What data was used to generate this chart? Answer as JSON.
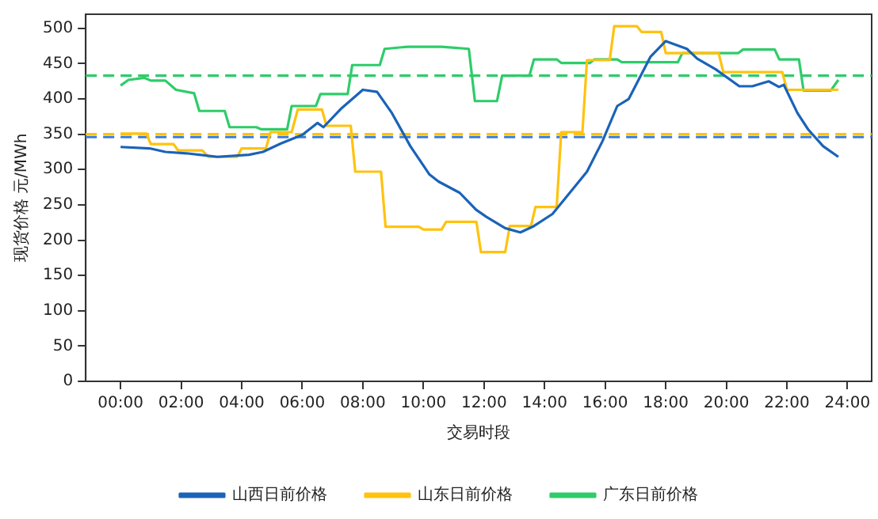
{
  "chart_data": {
    "type": "line",
    "xlabel": "交易时段",
    "ylabel": "现货价格 元/MWh",
    "xlim": [
      -1.15,
      24.8
    ],
    "xticks": [
      {
        "value": 0,
        "label": "00:00"
      },
      {
        "value": 2,
        "label": "02:00"
      },
      {
        "value": 4,
        "label": "04:00"
      },
      {
        "value": 6,
        "label": "06:00"
      },
      {
        "value": 8,
        "label": "08:00"
      },
      {
        "value": 10,
        "label": "10:00"
      },
      {
        "value": 12,
        "label": "12:00"
      },
      {
        "value": 14,
        "label": "14:00"
      },
      {
        "value": 16,
        "label": "16:00"
      },
      {
        "value": 18,
        "label": "18:00"
      },
      {
        "value": 20,
        "label": "20:00"
      },
      {
        "value": 22,
        "label": "22:00"
      },
      {
        "value": 24,
        "label": "24:00"
      }
    ],
    "ylim": [
      0,
      520
    ],
    "yticks": [
      0,
      50,
      100,
      150,
      200,
      250,
      300,
      350,
      400,
      450,
      500
    ],
    "grid": false,
    "legend": "bottom",
    "series": [
      {
        "name": "山西日前价格",
        "color": "#1a63b8",
        "x": [
          0,
          0.96,
          1.48,
          2.17,
          3.2,
          4.24,
          4.7,
          5.3,
          6,
          6.5,
          6.7,
          7.3,
          8,
          8.47,
          8.96,
          9.57,
          10.2,
          10.5,
          11.2,
          11.74,
          12.08,
          12.7,
          13.2,
          13.65,
          14.26,
          15.4,
          15.91,
          16.4,
          16.78,
          17.5,
          18,
          18.7,
          19.04,
          19.65,
          20.43,
          20.86,
          21.4,
          21.74,
          21.9,
          22.35,
          22.7,
          23.2,
          23.7
        ],
        "values": [
          332,
          330,
          325,
          323,
          318,
          321,
          325,
          337,
          349,
          366,
          360,
          387,
          413,
          410,
          380,
          333,
          293,
          283,
          267,
          243,
          233,
          217,
          211,
          220,
          237,
          297,
          340,
          390,
          400,
          460,
          482,
          471,
          457,
          442,
          418,
          418,
          425,
          417,
          420,
          380,
          357,
          333,
          318
        ]
      },
      {
        "name": "山东日前价格",
        "color": "#ffc20e",
        "x": [
          0,
          0.85,
          1,
          1.75,
          1.9,
          2.7,
          2.9,
          3.85,
          4,
          4.8,
          4.95,
          5.65,
          5.85,
          6.65,
          6.8,
          7.6,
          7.75,
          8.6,
          8.75,
          9.85,
          10,
          10.6,
          10.75,
          11.75,
          11.9,
          12.7,
          12.85,
          13.55,
          13.7,
          14.4,
          14.55,
          15.25,
          15.4,
          16.15,
          16.3,
          17.05,
          17.2,
          17.85,
          18,
          19.75,
          19.9,
          21.85,
          22,
          23.7
        ],
        "values": [
          351,
          351,
          336,
          336,
          327,
          327,
          318,
          318,
          330,
          330,
          353,
          353,
          385,
          385,
          362,
          362,
          297,
          297,
          219,
          219,
          215,
          215,
          226,
          226,
          183,
          183,
          220,
          220,
          247,
          247,
          353,
          353,
          455,
          455,
          503,
          503,
          495,
          495,
          465,
          465,
          438,
          438,
          413,
          413
        ]
      },
      {
        "name": "广东日前价格",
        "color": "#2ecc6a",
        "x": [
          0,
          0.26,
          0.78,
          1,
          1.48,
          1.83,
          2.43,
          2.6,
          3.44,
          3.6,
          4.48,
          4.65,
          5.5,
          5.65,
          6.45,
          6.6,
          7.5,
          7.65,
          8.56,
          8.72,
          9.5,
          10.6,
          11.5,
          11.7,
          12.43,
          12.6,
          13.5,
          13.65,
          14.4,
          14.55,
          15.5,
          15.65,
          16.4,
          16.55,
          18.4,
          18.55,
          20.4,
          20.55,
          21.6,
          21.75,
          22.4,
          22.55,
          23.45,
          23.7
        ],
        "values": [
          419,
          427,
          430,
          426,
          426,
          413,
          408,
          383,
          383,
          360,
          360,
          357,
          357,
          390,
          390,
          407,
          407,
          448,
          448,
          471,
          474,
          474,
          471,
          397,
          397,
          433,
          433,
          456,
          456,
          451,
          451,
          456,
          456,
          452,
          452,
          465,
          465,
          470,
          470,
          456,
          456,
          412,
          412,
          427
        ]
      }
    ],
    "ref_lines": [
      {
        "axis": "y",
        "value": 433,
        "color": "#2ecc6a",
        "line_style": "dashed"
      },
      {
        "axis": "y",
        "value": 350,
        "color": "#ffc20e",
        "line_style": "dashed"
      },
      {
        "axis": "y",
        "value": 346,
        "color": "#3a7fd5",
        "line_style": "dashed"
      }
    ]
  }
}
